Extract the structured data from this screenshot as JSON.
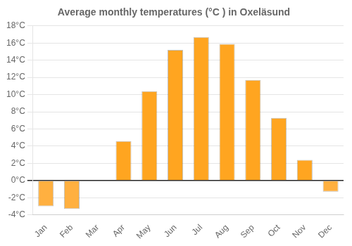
{
  "chart_data": {
    "type": "bar",
    "title": "Average monthly temperatures (°C ) in Oxeläsund",
    "categories": [
      "Jan",
      "Feb",
      "Mar",
      "Apr",
      "May",
      "Jun",
      "Jul",
      "Aug",
      "Sep",
      "Oct",
      "Nov",
      "Dec"
    ],
    "values": [
      -3.0,
      -3.3,
      0.0,
      4.6,
      10.4,
      15.2,
      16.7,
      15.9,
      11.7,
      7.3,
      2.4,
      -1.3
    ],
    "colors": [
      "#FFB040",
      "#FFB040",
      "#FFA520",
      "#FFA520",
      "#FFA520",
      "#FFA520",
      "#FFA520",
      "#FFA520",
      "#FFA520",
      "#FFA520",
      "#FFA520",
      "#FFB040"
    ],
    "ylim": [
      -4,
      18
    ],
    "yticks": [
      {
        "value": -4,
        "label": "-4°C"
      },
      {
        "value": -2,
        "label": "-2°C"
      },
      {
        "value": 0,
        "label": "0°C"
      },
      {
        "value": 2,
        "label": "2°C"
      },
      {
        "value": 4,
        "label": "4°C"
      },
      {
        "value": 6,
        "label": "6°C"
      },
      {
        "value": 8,
        "label": "8°C"
      },
      {
        "value": 10,
        "label": "10°C"
      },
      {
        "value": 12,
        "label": "12°C"
      },
      {
        "value": 14,
        "label": "14°C"
      },
      {
        "value": 16,
        "label": "16°C"
      },
      {
        "value": 18,
        "label": "18°C"
      }
    ],
    "grid": true
  }
}
